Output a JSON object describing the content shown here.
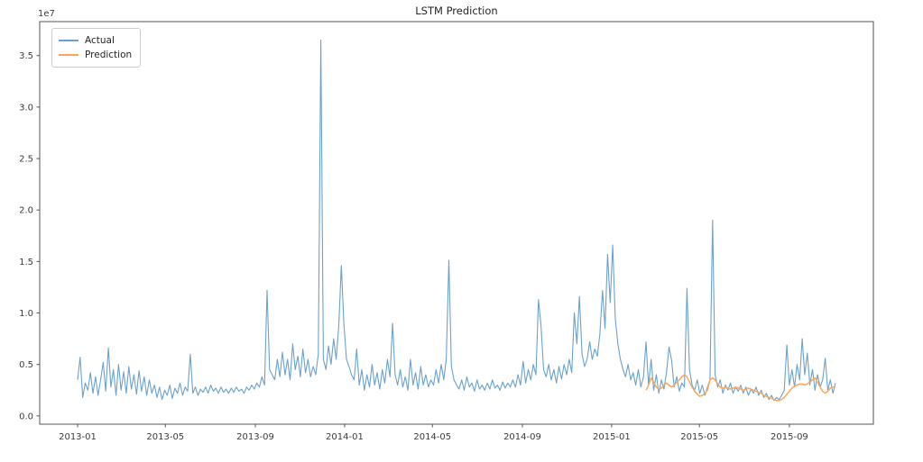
{
  "figure": {
    "title": "LSTM Prediction",
    "background_color": "#ffffff",
    "frame_color": "#555555",
    "tick_text_color": "#3b3b3b"
  },
  "legend": {
    "items": [
      {
        "label": "Actual",
        "color": "#6aa2cf"
      },
      {
        "label": "Prediction",
        "color": "#ffa556"
      }
    ]
  },
  "axes": {
    "y": {
      "offset_text": "1e7",
      "tick_labels": [
        "0.0",
        "0.5",
        "1.0",
        "1.5",
        "2.0",
        "2.5",
        "3.0",
        "3.5"
      ],
      "tick_values": [
        0,
        0.5,
        1.0,
        1.5,
        2.0,
        2.5,
        3.0,
        3.5
      ]
    },
    "x": {
      "tick_labels": [
        "2013-01",
        "2013-05",
        "2013-09",
        "2014-01",
        "2014-05",
        "2014-09",
        "2015-01",
        "2015-05",
        "2015-09"
      ],
      "tick_days": [
        0,
        120,
        243,
        365,
        485,
        608,
        730,
        850,
        973
      ]
    }
  },
  "chart_data": {
    "type": "line",
    "title": "LSTM Prediction",
    "xlabel": "",
    "ylabel": "",
    "y_unit": "1e7",
    "x_start_date": "2013-01-01",
    "x_step_days": 3.5,
    "xlim_days": [
      -51.8,
      1087.8
    ],
    "ylim": [
      -0.08,
      3.83
    ],
    "grid": false,
    "legend_position": "upper left",
    "series": [
      {
        "name": "Actual",
        "color": "#6aa2cf",
        "width": 1.1,
        "start_index": 0,
        "values": [
          0.35,
          0.57,
          0.18,
          0.32,
          0.25,
          0.42,
          0.22,
          0.38,
          0.2,
          0.35,
          0.52,
          0.24,
          0.66,
          0.28,
          0.45,
          0.2,
          0.5,
          0.25,
          0.43,
          0.22,
          0.48,
          0.26,
          0.4,
          0.21,
          0.44,
          0.24,
          0.38,
          0.2,
          0.35,
          0.22,
          0.3,
          0.18,
          0.28,
          0.16,
          0.25,
          0.2,
          0.3,
          0.17,
          0.27,
          0.22,
          0.32,
          0.2,
          0.28,
          0.24,
          0.6,
          0.22,
          0.28,
          0.2,
          0.26,
          0.23,
          0.28,
          0.22,
          0.3,
          0.24,
          0.27,
          0.22,
          0.28,
          0.23,
          0.26,
          0.22,
          0.27,
          0.23,
          0.28,
          0.24,
          0.26,
          0.22,
          0.28,
          0.25,
          0.3,
          0.26,
          0.32,
          0.28,
          0.38,
          0.3,
          1.22,
          0.45,
          0.4,
          0.35,
          0.55,
          0.38,
          0.62,
          0.4,
          0.55,
          0.35,
          0.7,
          0.45,
          0.58,
          0.38,
          0.65,
          0.42,
          0.55,
          0.38,
          0.48,
          0.4,
          0.6,
          3.65,
          0.55,
          0.45,
          0.68,
          0.5,
          0.75,
          0.55,
          0.88,
          1.46,
          0.9,
          0.55,
          0.48,
          0.4,
          0.35,
          0.65,
          0.3,
          0.45,
          0.25,
          0.4,
          0.28,
          0.5,
          0.3,
          0.42,
          0.26,
          0.45,
          0.32,
          0.55,
          0.38,
          0.9,
          0.4,
          0.3,
          0.45,
          0.28,
          0.38,
          0.25,
          0.55,
          0.3,
          0.42,
          0.26,
          0.48,
          0.3,
          0.4,
          0.28,
          0.35,
          0.3,
          0.45,
          0.32,
          0.5,
          0.35,
          0.55,
          1.51,
          0.48,
          0.35,
          0.3,
          0.26,
          0.35,
          0.25,
          0.38,
          0.28,
          0.32,
          0.24,
          0.35,
          0.26,
          0.3,
          0.25,
          0.32,
          0.26,
          0.35,
          0.27,
          0.3,
          0.25,
          0.33,
          0.27,
          0.32,
          0.28,
          0.35,
          0.28,
          0.4,
          0.3,
          0.53,
          0.32,
          0.45,
          0.35,
          0.5,
          0.4,
          1.13,
          0.88,
          0.45,
          0.38,
          0.5,
          0.35,
          0.45,
          0.32,
          0.48,
          0.36,
          0.5,
          0.4,
          0.55,
          0.42,
          1.0,
          0.7,
          1.16,
          0.6,
          0.48,
          0.55,
          0.72,
          0.55,
          0.65,
          0.58,
          0.8,
          1.22,
          0.85,
          1.57,
          1.1,
          1.66,
          0.95,
          0.7,
          0.55,
          0.45,
          0.38,
          0.5,
          0.35,
          0.42,
          0.3,
          0.45,
          0.28,
          0.38,
          0.72,
          0.3,
          0.55,
          0.25,
          0.4,
          0.22,
          0.35,
          0.26,
          0.42,
          0.67,
          0.54,
          0.28,
          0.38,
          0.24,
          0.32,
          0.28,
          1.24,
          0.45,
          0.3,
          0.25,
          0.35,
          0.22,
          0.3,
          0.2,
          0.28,
          0.35,
          1.9,
          0.4,
          0.28,
          0.35,
          0.22,
          0.3,
          0.25,
          0.32,
          0.22,
          0.28,
          0.24,
          0.3,
          0.22,
          0.28,
          0.2,
          0.26,
          0.22,
          0.28,
          0.2,
          0.25,
          0.18,
          0.22,
          0.16,
          0.2,
          0.15,
          0.18,
          0.16,
          0.2,
          0.25,
          0.69,
          0.3,
          0.45,
          0.28,
          0.5,
          0.35,
          0.75,
          0.4,
          0.61,
          0.3,
          0.45,
          0.25,
          0.4,
          0.28,
          0.35,
          0.56,
          0.25,
          0.35,
          0.22,
          0.32
        ]
      },
      {
        "name": "Prediction",
        "color": "#ffa556",
        "width": 1.5,
        "start_index": 222,
        "values": [
          0.25,
          0.3,
          0.37,
          0.33,
          0.28,
          0.26,
          0.27,
          0.3,
          0.32,
          0.3,
          0.28,
          0.3,
          0.33,
          0.35,
          0.38,
          0.4,
          0.38,
          0.33,
          0.28,
          0.24,
          0.21,
          0.19,
          0.2,
          0.22,
          0.25,
          0.35,
          0.37,
          0.35,
          0.31,
          0.28,
          0.27,
          0.28,
          0.27,
          0.26,
          0.27,
          0.28,
          0.27,
          0.26,
          0.25,
          0.26,
          0.27,
          0.26,
          0.25,
          0.24,
          0.23,
          0.22,
          0.2,
          0.19,
          0.18,
          0.17,
          0.16,
          0.15,
          0.15,
          0.16,
          0.18,
          0.21,
          0.24,
          0.27,
          0.29,
          0.3,
          0.31,
          0.31,
          0.3,
          0.31,
          0.33,
          0.35,
          0.37,
          0.33,
          0.28,
          0.24,
          0.22,
          0.24,
          0.27,
          0.28,
          0.28
        ]
      }
    ]
  }
}
